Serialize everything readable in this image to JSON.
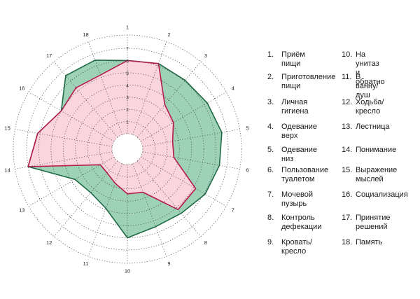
{
  "chart_data": {
    "type": "radar",
    "title": "",
    "axes": [
      "1",
      "2",
      "3",
      "4",
      "5",
      "6",
      "7",
      "8",
      "9",
      "10",
      "11",
      "12",
      "13",
      "14",
      "15",
      "16",
      "17",
      "18"
    ],
    "rticks": [
      "1",
      "2",
      "3",
      "4",
      "5",
      "6",
      "7"
    ],
    "rlim": [
      0,
      7
    ],
    "grid": true,
    "series": [
      {
        "values": [
          6.0,
          6.2,
          6.1,
          6.3,
          6.6,
          6.4,
          6.1,
          5.6,
          5.5,
          6.0,
          3.9,
          3.4,
          3.7,
          7.0,
          6.2,
          5.0,
          6.6,
          6.5
        ],
        "color": "#9ed2b6",
        "stroke": "#1f6b45"
      },
      {
        "values": [
          6.0,
          6.2,
          3.5,
          3.1,
          2.5,
          2.6,
          5.2,
          5.2,
          2.5,
          2.4,
          1.7,
          1.3,
          1.3,
          7.0,
          6.2,
          5.0,
          5.3,
          5.2
        ],
        "color": "#fbd5de",
        "stroke": "#b71a4c"
      }
    ]
  },
  "legend": {
    "left": [
      {
        "num": "1.",
        "label": "Приём пищи"
      },
      {
        "num": "2.",
        "label": "Приготовление\nпищи"
      },
      {
        "num": "3.",
        "label": "Личная гигиена"
      },
      {
        "num": "4.",
        "label": "Одевание верх"
      },
      {
        "num": "5.",
        "label": "Одевание низ"
      },
      {
        "num": "6.",
        "label": "Пользование\nтуалетом"
      },
      {
        "num": "7.",
        "label": "Мочевой пузырь"
      },
      {
        "num": "8.",
        "label": "Контроль\nдефекации"
      },
      {
        "num": "9.",
        "label": "Кровать/кресло"
      }
    ],
    "right": [
      {
        "num": "10.",
        "label": "На унитаз\nи обратно"
      },
      {
        "num": "11.",
        "label": "В ванну/душ"
      },
      {
        "num": "12.",
        "label": "Ходьба/кресло"
      },
      {
        "num": "13.",
        "label": "Лестница"
      },
      {
        "num": "14.",
        "label": "Понимание"
      },
      {
        "num": "15.",
        "label": "Выражение\nмыслей"
      },
      {
        "num": "16.",
        "label": "Социализация"
      },
      {
        "num": "17.",
        "label": "Принятие\nрешений"
      },
      {
        "num": "18.",
        "label": "Память"
      }
    ]
  }
}
